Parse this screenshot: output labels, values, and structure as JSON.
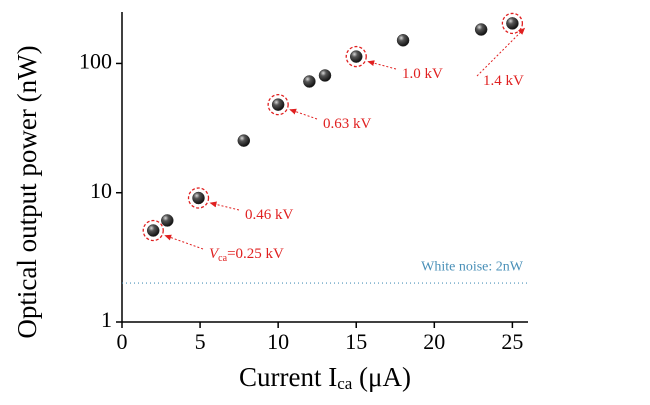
{
  "chart_data": {
    "type": "scatter",
    "y_label": "Optical output power (nW)",
    "x_label": {
      "main": "Current I",
      "subscript": "ca",
      "suffix": " (μA)"
    },
    "x": [
      2,
      2.9,
      4.9,
      7.8,
      10,
      12,
      13,
      15,
      18,
      23,
      25
    ],
    "values": [
      5.1,
      6.1,
      9.1,
      25.3,
      48,
      72.5,
      80.7,
      113,
      151,
      183,
      204
    ],
    "color": "#2a2a2a",
    "xlim": [
      0,
      26
    ],
    "xticks": [
      0,
      5,
      10,
      15,
      20,
      25
    ],
    "ylim": [
      1,
      250
    ],
    "yticks": [
      1,
      10,
      100
    ],
    "log_y": true,
    "noise": {
      "value": 2,
      "label": "White noise: 2nW",
      "color": "#4a90b8"
    },
    "annotation_color": "#e02020",
    "annotations": [
      {
        "prefix": "V",
        "subscript": "ca",
        "text": "=0.25 kV"
      },
      {
        "text": "0.46 kV"
      },
      {
        "text": "0.63 kV"
      },
      {
        "text": "1.0 kV"
      },
      {
        "text": "1.4 kV"
      }
    ]
  }
}
